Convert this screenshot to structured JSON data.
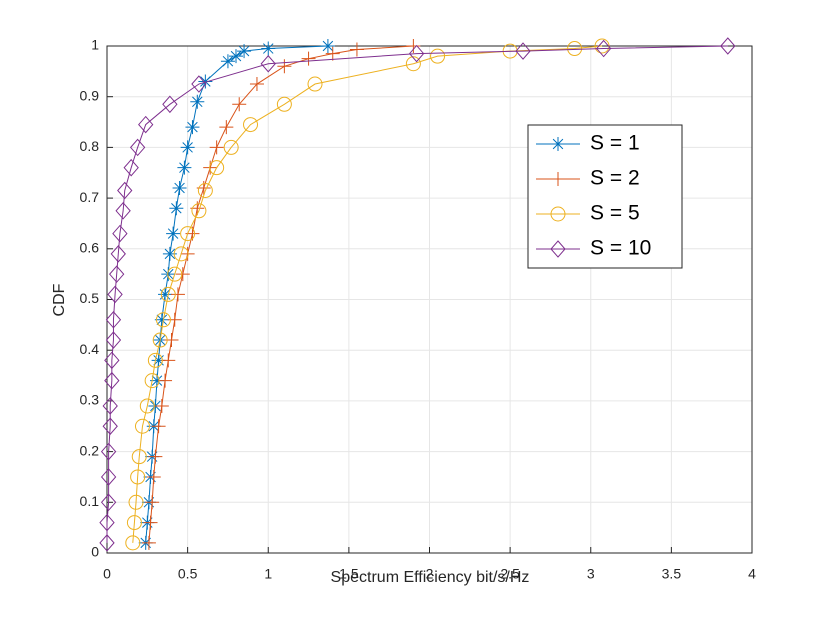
{
  "chart_data": {
    "type": "line",
    "xlabel": "Spectrum Efficiency bit/s/Hz",
    "ylabel": "CDF",
    "xlim": [
      0,
      4
    ],
    "ylim": [
      0,
      1
    ],
    "xticks": [
      0,
      0.5,
      1,
      1.5,
      2,
      2.5,
      3,
      3.5,
      4
    ],
    "yticks": [
      0,
      0.1,
      0.2,
      0.3,
      0.4,
      0.5,
      0.6,
      0.7,
      0.8,
      0.9,
      1
    ],
    "grid": true,
    "legend": "upper right",
    "series": [
      {
        "name": "S = 1",
        "color": "#0072BD",
        "marker": "star",
        "x": [
          0.24,
          0.25,
          0.26,
          0.27,
          0.28,
          0.29,
          0.3,
          0.31,
          0.32,
          0.33,
          0.34,
          0.36,
          0.38,
          0.39,
          0.41,
          0.43,
          0.45,
          0.48,
          0.5,
          0.53,
          0.56,
          0.61,
          0.75,
          0.8,
          0.85,
          1.0,
          1.37
        ],
        "values": [
          0.02,
          0.06,
          0.1,
          0.15,
          0.19,
          0.25,
          0.29,
          0.34,
          0.38,
          0.42,
          0.46,
          0.51,
          0.55,
          0.59,
          0.63,
          0.68,
          0.72,
          0.76,
          0.8,
          0.84,
          0.89,
          0.93,
          0.97,
          0.98,
          0.99,
          0.995,
          1.0
        ]
      },
      {
        "name": "S = 2",
        "color": "#D95319",
        "marker": "plus",
        "x": [
          0.26,
          0.27,
          0.28,
          0.29,
          0.3,
          0.32,
          0.34,
          0.36,
          0.38,
          0.4,
          0.42,
          0.44,
          0.47,
          0.5,
          0.53,
          0.56,
          0.6,
          0.64,
          0.68,
          0.74,
          0.82,
          0.93,
          1.1,
          1.25,
          1.4,
          1.55,
          1.9
        ],
        "values": [
          0.02,
          0.06,
          0.1,
          0.15,
          0.19,
          0.25,
          0.29,
          0.34,
          0.38,
          0.42,
          0.46,
          0.51,
          0.55,
          0.59,
          0.63,
          0.68,
          0.72,
          0.76,
          0.8,
          0.84,
          0.885,
          0.925,
          0.96,
          0.975,
          0.985,
          0.993,
          1.0
        ]
      },
      {
        "name": "S = 5",
        "color": "#EDB120",
        "marker": "circle",
        "x": [
          0.16,
          0.17,
          0.18,
          0.19,
          0.2,
          0.22,
          0.25,
          0.28,
          0.3,
          0.33,
          0.35,
          0.38,
          0.42,
          0.46,
          0.5,
          0.57,
          0.61,
          0.68,
          0.77,
          0.89,
          1.1,
          1.29,
          1.9,
          2.05,
          2.5,
          2.9,
          3.07
        ],
        "values": [
          0.02,
          0.06,
          0.1,
          0.15,
          0.19,
          0.25,
          0.29,
          0.34,
          0.38,
          0.42,
          0.46,
          0.51,
          0.55,
          0.59,
          0.63,
          0.675,
          0.715,
          0.76,
          0.8,
          0.845,
          0.885,
          0.925,
          0.965,
          0.98,
          0.99,
          0.995,
          1.0
        ]
      },
      {
        "name": "S = 10",
        "color": "#7E2F8E",
        "marker": "diamond",
        "x": [
          0.0,
          0.0,
          0.01,
          0.01,
          0.01,
          0.02,
          0.02,
          0.03,
          0.03,
          0.04,
          0.04,
          0.05,
          0.06,
          0.07,
          0.08,
          0.1,
          0.11,
          0.15,
          0.19,
          0.24,
          0.39,
          0.57,
          1.0,
          1.92,
          2.58,
          3.08,
          3.85
        ],
        "values": [
          0.02,
          0.06,
          0.1,
          0.15,
          0.2,
          0.25,
          0.29,
          0.34,
          0.38,
          0.42,
          0.46,
          0.51,
          0.55,
          0.59,
          0.63,
          0.675,
          0.715,
          0.76,
          0.8,
          0.845,
          0.885,
          0.925,
          0.965,
          0.985,
          0.99,
          0.995,
          1.0
        ]
      }
    ]
  }
}
